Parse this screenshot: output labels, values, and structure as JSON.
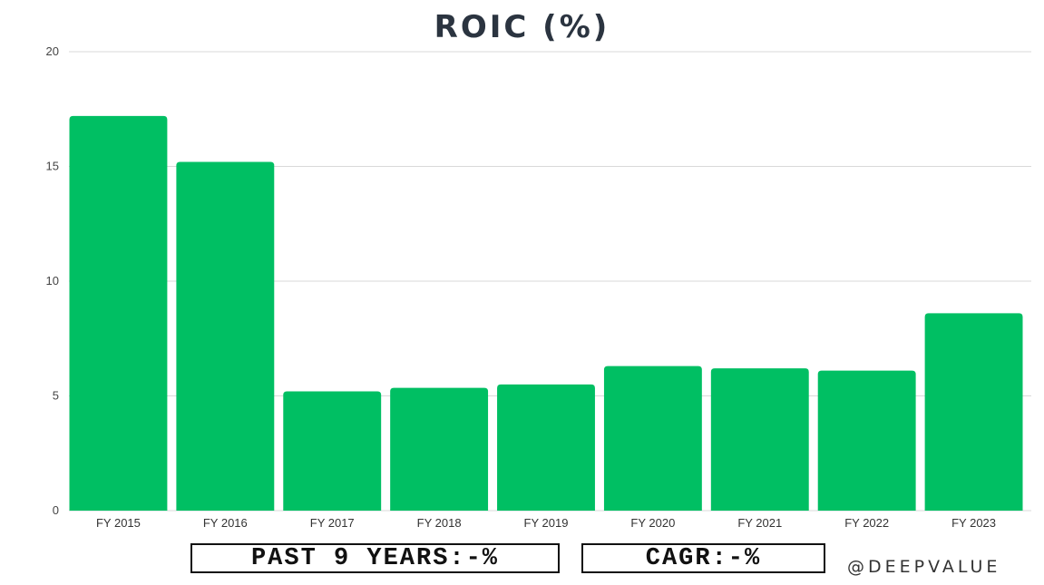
{
  "chart_data": {
    "type": "bar",
    "title": "ROIC (%)",
    "categories": [
      "FY 2015",
      "FY 2016",
      "FY 2017",
      "FY 2018",
      "FY 2019",
      "FY 2020",
      "FY 2021",
      "FY 2022",
      "FY 2023"
    ],
    "values": [
      17.2,
      15.2,
      5.2,
      5.35,
      5.5,
      6.3,
      6.2,
      6.1,
      8.6
    ],
    "ylim": [
      0,
      20
    ],
    "yticks": [
      0,
      5,
      10,
      15,
      20
    ],
    "grid": true,
    "bar_color": "#00bf63"
  },
  "footer": {
    "past_years_label": "PAST 9 YEARS:-%",
    "cagr_label": "CAGR:-%",
    "watermark": "@DEEPVALUE"
  }
}
